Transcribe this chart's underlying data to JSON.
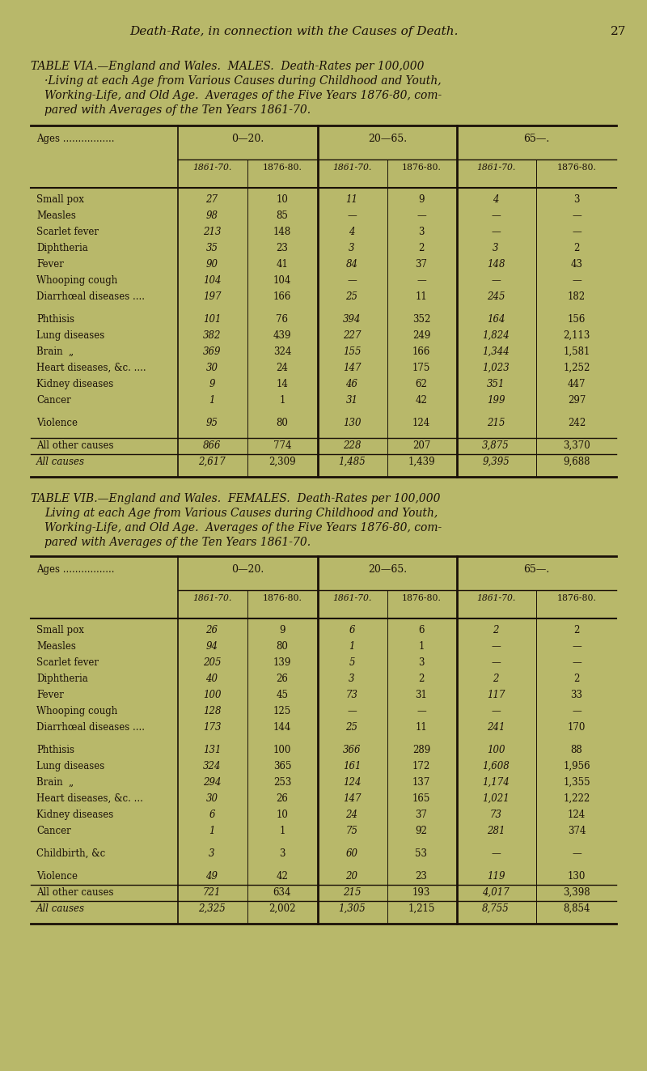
{
  "bg_color": "#b8b86a",
  "text_color": "#1a1008",
  "page_header": "Death-Rate, in connection with the Causes of Death.",
  "page_number": "27",
  "table_a_title": [
    [
      "TABLE VIA.",
      "normal",
      0
    ],
    [
      "—England and Wales.",
      "italic",
      0
    ],
    [
      "  MALES.",
      "normal",
      0
    ],
    [
      "  Death-Rates per 100,000",
      "italic",
      0
    ]
  ],
  "table_a_title_lines_2": [
    "·Living at each Age from Various Causes during Childhood and Youth,",
    "Working-Life, and Old Age.  Averages of the Five Years 1876-80, com-",
    "pared with Averages of the Ten Years 1861-70."
  ],
  "table_b_title": [
    [
      "TABLE VIB.",
      "normal",
      0
    ],
    [
      "—England and Wales.",
      "italic",
      0
    ],
    [
      "  FEMALES.",
      "normal",
      0
    ],
    [
      "  Death-Rates per 100,000",
      "italic",
      0
    ]
  ],
  "table_b_title_lines_2": [
    "Living at each Age from Various Causes during Childhood and Youth,",
    "Working-Life, and Old Age.  Averages of the Five Years 1876-80, com-",
    "pared with Averages of the Ten Years 1861-70."
  ],
  "col_groups": [
    "0—20.",
    "20—65.",
    "65—."
  ],
  "sub_cols": [
    "1861-70.",
    "1876-80.",
    "1861-70.",
    "1876-80.",
    "1861-70.",
    "1876-80."
  ],
  "males_rows": [
    [
      "Small pox",
      "27",
      "10",
      "11",
      "9",
      "4",
      "3"
    ],
    [
      "Measles",
      "98",
      "85",
      "—",
      "—",
      "—",
      "—"
    ],
    [
      "Scarlet fever",
      "213",
      "148",
      "4",
      "3",
      "—",
      "—"
    ],
    [
      "Diphtheria",
      "35",
      "23",
      "3",
      "2",
      "3",
      "2"
    ],
    [
      "Fever",
      "90",
      "41",
      "84",
      "37",
      "148",
      "43"
    ],
    [
      "Whooping cough",
      "104",
      "104",
      "—",
      "—",
      "—",
      "—"
    ],
    [
      "Diarrhœal diseases ....",
      "197",
      "166",
      "25",
      "11",
      "245",
      "182"
    ],
    [
      "Phthisis",
      "101",
      "76",
      "394",
      "352",
      "164",
      "156"
    ],
    [
      "Lung diseases",
      "382",
      "439",
      "227",
      "249",
      "1,824",
      "2,113"
    ],
    [
      "Brain  „",
      "369",
      "324",
      "155",
      "166",
      "1,344",
      "1,581"
    ],
    [
      "Heart diseases, &c. ....",
      "30",
      "24",
      "147",
      "175",
      "1,023",
      "1,252"
    ],
    [
      "Kidney diseases",
      "9",
      "14",
      "46",
      "62",
      "351",
      "447"
    ],
    [
      "Cancer",
      "1",
      "1",
      "31",
      "42",
      "199",
      "297"
    ],
    [
      "Violence",
      "95",
      "80",
      "130",
      "124",
      "215",
      "242"
    ],
    [
      "All other causes",
      "866",
      "774",
      "228",
      "207",
      "3,875",
      "3,370"
    ],
    [
      "All causes",
      "2,617",
      "2,309",
      "1,485",
      "1,439",
      "9,395",
      "9,688"
    ]
  ],
  "females_rows": [
    [
      "Small pox",
      "26",
      "9",
      "6",
      "6",
      "2",
      "2"
    ],
    [
      "Measles",
      "94",
      "80",
      "1",
      "1",
      "—",
      "—"
    ],
    [
      "Scarlet fever",
      "205",
      "139",
      "5",
      "3",
      "—",
      "—"
    ],
    [
      "Diphtheria",
      "40",
      "26",
      "3",
      "2",
      "2",
      "2"
    ],
    [
      "Fever",
      "100",
      "45",
      "73",
      "31",
      "117",
      "33"
    ],
    [
      "Whooping cough",
      "128",
      "125",
      "—",
      "—",
      "—",
      "—"
    ],
    [
      "Diarrhœal diseases ....",
      "173",
      "144",
      "25",
      "11",
      "241",
      "170"
    ],
    [
      "Phthisis",
      "131",
      "100",
      "366",
      "289",
      "100",
      "88"
    ],
    [
      "Lung diseases",
      "324",
      "365",
      "161",
      "172",
      "1,608",
      "1,956"
    ],
    [
      "Brain  „",
      "294",
      "253",
      "124",
      "137",
      "1,174",
      "1,355"
    ],
    [
      "Heart diseases, &c. ...",
      "30",
      "26",
      "147",
      "165",
      "1,021",
      "1,222"
    ],
    [
      "Kidney diseases",
      "6",
      "10",
      "24",
      "37",
      "73",
      "124"
    ],
    [
      "Cancer",
      "1",
      "1",
      "75",
      "92",
      "281",
      "374"
    ],
    [
      "Childbirth, &c",
      "3",
      "3",
      "60",
      "53",
      "—",
      "—"
    ],
    [
      "Violence",
      "49",
      "42",
      "20",
      "23",
      "119",
      "130"
    ],
    [
      "All other causes",
      "721",
      "634",
      "215",
      "193",
      "4,017",
      "3,398"
    ],
    [
      "All causes",
      "2,325",
      "2,002",
      "1,305",
      "1,215",
      "8,755",
      "8,854"
    ]
  ]
}
